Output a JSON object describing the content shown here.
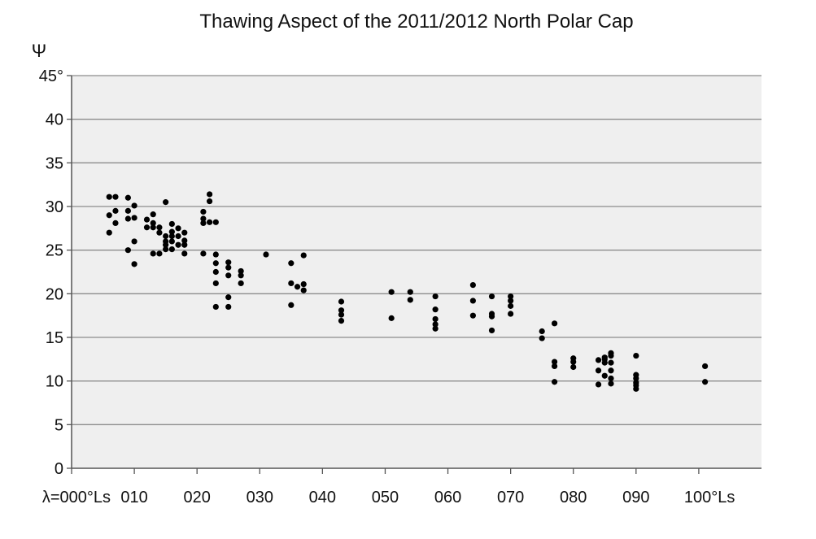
{
  "chart_data": {
    "type": "scatter",
    "title": "Thawing Aspect of the 2011/2012 North Polar Cap",
    "ylabel": "Ψ",
    "xlabel": "",
    "xlim": [
      0,
      110
    ],
    "ylim": [
      0,
      45
    ],
    "grid": true,
    "y_ticks": [
      0,
      5,
      10,
      15,
      20,
      25,
      30,
      35,
      40,
      45
    ],
    "y_tick_labels": [
      "0",
      "5",
      "10",
      "15",
      "20",
      "25",
      "30",
      "35",
      "40",
      "45°"
    ],
    "x_ticks": [
      0,
      10,
      20,
      30,
      40,
      50,
      60,
      70,
      80,
      90,
      100
    ],
    "x_tick_labels": [
      "λ=000°Ls",
      "010",
      "020",
      "030",
      "040",
      "050",
      "060",
      "070",
      "080",
      "090",
      "100°Ls"
    ],
    "colors": {
      "plot_bg": "#efefef",
      "grid": "#8c8c8c",
      "marker": "#000000"
    },
    "series": [
      {
        "points": [
          [
            6,
            31.1
          ],
          [
            6,
            29.0
          ],
          [
            6,
            27.0
          ],
          [
            7,
            31.1
          ],
          [
            7,
            29.5
          ],
          [
            7,
            28.1
          ],
          [
            9,
            31.0
          ],
          [
            9,
            29.5
          ],
          [
            9,
            28.6
          ],
          [
            9,
            25.0
          ],
          [
            10,
            30.1
          ],
          [
            10,
            28.7
          ],
          [
            10,
            26.0
          ],
          [
            10,
            23.4
          ],
          [
            12,
            28.5
          ],
          [
            12,
            27.6
          ],
          [
            13,
            29.1
          ],
          [
            13,
            28.1
          ],
          [
            13,
            27.6
          ],
          [
            13,
            24.6
          ],
          [
            14,
            27.6
          ],
          [
            14,
            27.0
          ],
          [
            14,
            24.6
          ],
          [
            15,
            30.5
          ],
          [
            15,
            26.6
          ],
          [
            15,
            26.0
          ],
          [
            15,
            25.6
          ],
          [
            15,
            25.1
          ],
          [
            16,
            28.0
          ],
          [
            16,
            27.1
          ],
          [
            16,
            26.6
          ],
          [
            16,
            26.0
          ],
          [
            16,
            25.1
          ],
          [
            17,
            27.5
          ],
          [
            17,
            26.6
          ],
          [
            17,
            25.6
          ],
          [
            18,
            27.0
          ],
          [
            18,
            26.1
          ],
          [
            18,
            25.6
          ],
          [
            18,
            24.6
          ],
          [
            21,
            29.4
          ],
          [
            21,
            28.6
          ],
          [
            21,
            28.1
          ],
          [
            21,
            24.6
          ],
          [
            22,
            31.4
          ],
          [
            22,
            30.6
          ],
          [
            22,
            28.2
          ],
          [
            23,
            28.2
          ],
          [
            23,
            24.5
          ],
          [
            23,
            23.5
          ],
          [
            23,
            22.5
          ],
          [
            23,
            21.2
          ],
          [
            23,
            18.5
          ],
          [
            25,
            23.6
          ],
          [
            25,
            23.0
          ],
          [
            25,
            22.1
          ],
          [
            25,
            19.6
          ],
          [
            25,
            18.5
          ],
          [
            27,
            22.6
          ],
          [
            27,
            22.1
          ],
          [
            27,
            21.2
          ],
          [
            31,
            24.5
          ],
          [
            35,
            23.5
          ],
          [
            35,
            21.2
          ],
          [
            35,
            18.7
          ],
          [
            36,
            20.8
          ],
          [
            37,
            24.4
          ],
          [
            37,
            21.1
          ],
          [
            37,
            20.4
          ],
          [
            43,
            19.1
          ],
          [
            43,
            18.1
          ],
          [
            43,
            17.6
          ],
          [
            43,
            16.9
          ],
          [
            51,
            20.2
          ],
          [
            51,
            17.2
          ],
          [
            54,
            20.2
          ],
          [
            54,
            19.3
          ],
          [
            58,
            19.7
          ],
          [
            58,
            18.2
          ],
          [
            58,
            17.1
          ],
          [
            58,
            16.5
          ],
          [
            58,
            16.0
          ],
          [
            64,
            21.0
          ],
          [
            64,
            19.2
          ],
          [
            64,
            17.5
          ],
          [
            67,
            19.7
          ],
          [
            67,
            17.7
          ],
          [
            67,
            17.4
          ],
          [
            67,
            15.8
          ],
          [
            70,
            19.7
          ],
          [
            70,
            19.2
          ],
          [
            70,
            18.6
          ],
          [
            70,
            17.7
          ],
          [
            75,
            15.7
          ],
          [
            75,
            14.9
          ],
          [
            77,
            16.6
          ],
          [
            77,
            12.2
          ],
          [
            77,
            11.7
          ],
          [
            77,
            9.9
          ],
          [
            80,
            12.6
          ],
          [
            80,
            12.2
          ],
          [
            80,
            11.6
          ],
          [
            84,
            12.4
          ],
          [
            84,
            11.2
          ],
          [
            84,
            9.6
          ],
          [
            85,
            12.5
          ],
          [
            85,
            12.1
          ],
          [
            85,
            10.6
          ],
          [
            85,
            12.7
          ],
          [
            86,
            13.2
          ],
          [
            86,
            12.9
          ],
          [
            86,
            12.1
          ],
          [
            86,
            11.2
          ],
          [
            86,
            10.3
          ],
          [
            86,
            9.7
          ],
          [
            90,
            12.9
          ],
          [
            90,
            10.7
          ],
          [
            90,
            10.3
          ],
          [
            90,
            9.8
          ],
          [
            90,
            9.5
          ],
          [
            90,
            9.1
          ],
          [
            101,
            11.7
          ],
          [
            101,
            9.9
          ]
        ]
      }
    ]
  }
}
